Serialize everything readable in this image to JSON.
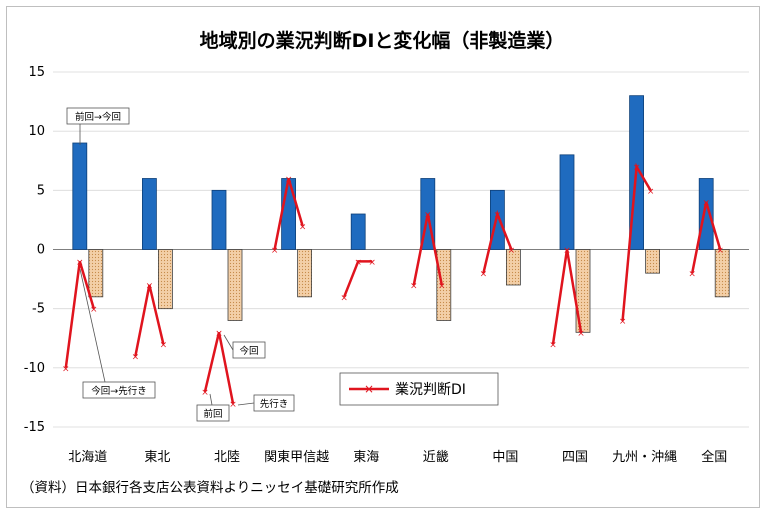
{
  "chart_data": {
    "type": "bar",
    "title": "地域別の業況判断DIと変化幅（非製造業）",
    "categories": [
      "北海道",
      "東北",
      "北陸",
      "関東甲信越",
      "東海",
      "近畿",
      "中国",
      "四国",
      "九州・沖縄",
      "全国"
    ],
    "series": [
      {
        "kind": "bar",
        "values": [
          9,
          6,
          5,
          6,
          3,
          6,
          5,
          8,
          13,
          6
        ],
        "color": "#1f6bbf"
      },
      {
        "kind": "bar",
        "values": [
          -4,
          -5,
          -6,
          -4,
          0,
          -6,
          -3,
          -7,
          -2,
          -4
        ],
        "color": "#f3cfa7"
      },
      {
        "kind": "line",
        "name": "業況判断DI",
        "color": "#e0141e",
        "points": [
          [
            -10,
            -1,
            -5
          ],
          [
            -9,
            -3,
            -8
          ],
          [
            -12,
            -7,
            -13
          ],
          [
            0,
            6,
            2
          ],
          [
            -4,
            -1,
            -1
          ],
          [
            -3,
            3,
            -3
          ],
          [
            -2,
            3,
            0
          ],
          [
            -8,
            0,
            -7
          ],
          [
            -6,
            7,
            5
          ],
          [
            -2,
            4,
            0
          ]
        ]
      }
    ],
    "ylim": [
      -15,
      15
    ],
    "yticks": [
      15,
      10,
      5,
      0,
      -5,
      -10,
      -15
    ],
    "legend": {
      "label": "業況判断DI",
      "position": "bottom-center"
    },
    "annotations": [
      "前回→今回",
      "今回→先行き",
      "今回",
      "前回",
      "先行き"
    ],
    "source": "（資料）日本銀行各支店公表資料よりニッセイ基礎研究所作成"
  }
}
